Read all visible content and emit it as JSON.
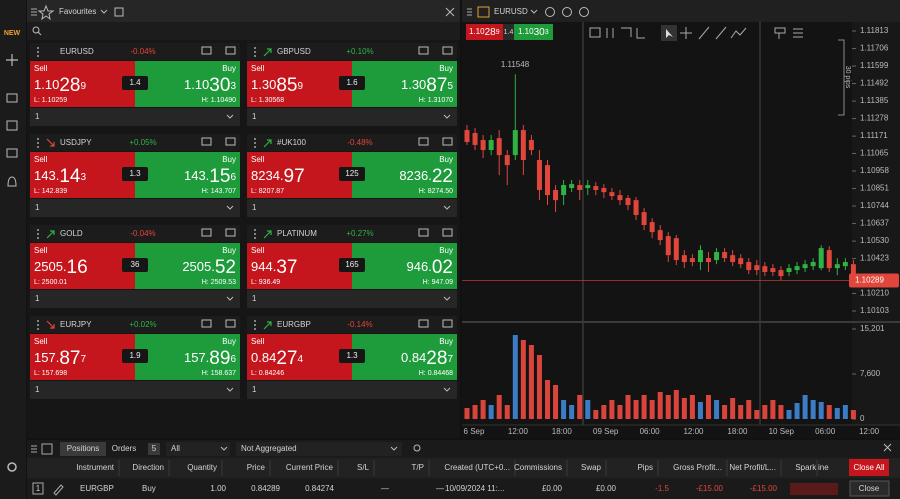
{
  "sidebar": {
    "badge": "NEW"
  },
  "favourites": {
    "title": "Favourites",
    "sell_label": "Sell",
    "buy_label": "Buy",
    "up_color": "#2fb344",
    "down_color": "#e0463c",
    "sell_color": "#c4161c",
    "buy_color": "#1e9b3a",
    "tiles": [
      {
        "symbol": "EURUSD",
        "change": "-0.04%",
        "change_color": "#e0463c",
        "sell": [
          "1.10",
          "28",
          "9"
        ],
        "spread": "1.4",
        "buy": [
          "1.10",
          "30",
          "3"
        ],
        "low": "L: 1.10259",
        "high": "H: 1.10490",
        "quantity": "1"
      },
      {
        "symbol": "GBPUSD",
        "arrow": "up",
        "change": "+0.10%",
        "change_color": "#2fb344",
        "sell": [
          "1.30",
          "85",
          "9"
        ],
        "spread": "1.6",
        "buy": [
          "1.30",
          "87",
          "5"
        ],
        "low": "L: 1.30568",
        "high": "H: 1.31070",
        "quantity": "1"
      },
      {
        "symbol": "USDJPY",
        "arrow": "down",
        "change": "+0.05%",
        "change_color": "#2fb344",
        "sell": [
          "143.",
          "14",
          "3"
        ],
        "spread": "1.3",
        "buy": [
          "143.",
          "15",
          "6"
        ],
        "low": "L: 142.839",
        "high": "H: 143.707",
        "quantity": "1"
      },
      {
        "symbol": "#UK100",
        "arrow": "up",
        "change": "-0.48%",
        "change_color": "#e0463c",
        "sell": [
          "8234.",
          "97"
        ],
        "spread": "125",
        "buy": [
          "8236.",
          "22"
        ],
        "low": "L: 8207.87",
        "high": "H: 8274.50",
        "quantity": "1"
      },
      {
        "symbol": "GOLD",
        "arrow": "up",
        "change": "-0.04%",
        "change_color": "#e0463c",
        "sell": [
          "2505.",
          "16"
        ],
        "spread": "36",
        "buy": [
          "2505.",
          "52"
        ],
        "low": "L: 2500.01",
        "high": "H: 2509.53",
        "quantity": "1"
      },
      {
        "symbol": "PLATINUM",
        "arrow": "up",
        "change": "+0.27%",
        "change_color": "#2fb344",
        "sell": [
          "944.",
          "37"
        ],
        "spread": "165",
        "buy": [
          "946.",
          "02"
        ],
        "low": "L: 936.49",
        "high": "H: 947.09",
        "quantity": "1"
      },
      {
        "symbol": "EURJPY",
        "arrow": "down",
        "change": "+0.02%",
        "change_color": "#2fb344",
        "sell": [
          "157.",
          "87",
          "7"
        ],
        "spread": "1.9",
        "buy": [
          "157.",
          "89",
          "6"
        ],
        "low": "L: 157.698",
        "high": "H: 158.637",
        "quantity": "1"
      },
      {
        "symbol": "EURGBP",
        "arrow": "up",
        "change": "-0.14%",
        "change_color": "#e0463c",
        "sell": [
          "0.84",
          "27",
          "4"
        ],
        "spread": "1.3",
        "buy": [
          "0.84",
          "28",
          "7"
        ],
        "low": "L: 0.84246",
        "high": "H: 0.84468",
        "quantity": "1"
      }
    ]
  },
  "chart_data": {
    "type": "candlestick",
    "symbol": "EURUSD",
    "bid": [
      "1.10",
      "28",
      "9"
    ],
    "spread": "1.4",
    "ask": [
      "1.10",
      "30",
      "3"
    ],
    "annotation": "1.11548",
    "measure_label": "30 pips",
    "up_color": "#2fb344",
    "down_color": "#e0463c",
    "volume_up_color": "#3b7cc4",
    "volume_down_color": "#d9453d",
    "open": [
      1.11208,
      1.1119,
      1.11147,
      1.11086,
      1.11159,
      1.11055,
      1.11055,
      1.11208,
      1.11147,
      1.11025,
      1.10994,
      1.10842,
      1.10811,
      1.10854,
      1.10872,
      1.10854,
      1.10866,
      1.10854,
      1.10829,
      1.10811,
      1.10793,
      1.1078,
      1.10707,
      1.10646,
      1.10597,
      1.1056,
      1.10548,
      1.10444,
      1.10426,
      1.10402,
      1.10426,
      1.10414,
      1.10463,
      1.10444,
      1.10426,
      1.10402,
      1.10383,
      1.10377,
      1.10365,
      1.10353,
      1.10341,
      1.10353,
      1.10365,
      1.10377,
      1.10365,
      1.10475,
      1.10365,
      1.10377,
      1.10389
    ],
    "high": [
      1.11239,
      1.1122,
      1.11178,
      1.11178,
      1.11208,
      1.11086,
      1.11548,
      1.11239,
      1.11178,
      1.11086,
      1.11025,
      1.10872,
      1.10903,
      1.10903,
      1.10903,
      1.10903,
      1.1089,
      1.10878,
      1.10854,
      1.10842,
      1.10811,
      1.10799,
      1.10732,
      1.1067,
      1.10628,
      1.10585,
      1.10567,
      1.10475,
      1.1045,
      1.10505,
      1.10463,
      1.10487,
      1.10487,
      1.10475,
      1.1045,
      1.10426,
      1.10414,
      1.10402,
      1.10389,
      1.10377,
      1.10389,
      1.10402,
      1.10414,
      1.10426,
      1.10505,
      1.10499,
      1.10426,
      1.10426,
      1.10414
    ],
    "low": [
      1.11117,
      1.11086,
      1.11037,
      1.11055,
      1.10933,
      1.10872,
      1.11025,
      1.10933,
      1.11055,
      1.1078,
      1.1075,
      1.10707,
      1.1075,
      1.10829,
      1.1078,
      1.10811,
      1.10811,
      1.10793,
      1.1078,
      1.1075,
      1.10719,
      1.10658,
      1.10597,
      1.10548,
      1.10505,
      1.10402,
      1.10383,
      1.10365,
      1.10377,
      1.10353,
      1.10341,
      1.10389,
      1.10402,
      1.10377,
      1.10365,
      1.10328,
      1.10322,
      1.10316,
      1.10316,
      1.10292,
      1.10316,
      1.10328,
      1.10341,
      1.10353,
      1.10353,
      1.10341,
      1.10322,
      1.10353,
      1.10279
    ],
    "close": [
      1.11135,
      1.11117,
      1.11086,
      1.11147,
      1.11055,
      1.10994,
      1.11208,
      1.11025,
      1.11086,
      1.10842,
      1.10811,
      1.1078,
      1.10872,
      1.10878,
      1.10842,
      1.10872,
      1.10842,
      1.10829,
      1.10805,
      1.1078,
      1.1075,
      1.10689,
      1.10628,
      1.10585,
      1.10536,
      1.10444,
      1.10414,
      1.10402,
      1.10402,
      1.10475,
      1.10402,
      1.10463,
      1.10426,
      1.10402,
      1.10389,
      1.10353,
      1.10353,
      1.10341,
      1.10341,
      1.10316,
      1.10365,
      1.10377,
      1.10389,
      1.10402,
      1.10487,
      1.10365,
      1.10389,
      1.10402,
      1.10289
    ],
    "volume": [
      1858,
      2365,
      3209,
      2365,
      4054,
      2365,
      14188,
      13343,
      12499,
      10810,
      6587,
      5743,
      3209,
      2365,
      4054,
      3209,
      1520,
      2365,
      3209,
      2365,
      4054,
      3209,
      4054,
      3209,
      4560,
      4054,
      4898,
      3547,
      4054,
      2871,
      4054,
      3209,
      2365,
      3547,
      2365,
      3209,
      1520,
      2365,
      3209,
      2365,
      1520,
      2702,
      4054,
      3209,
      2871,
      2365,
      1858,
      2365,
      1520
    ],
    "ylim": [
      1.10103,
      1.11813
    ],
    "yticks": [
      1.10103,
      {
        "value": 1.1021,
        "label": "1.10210"
      },
      1.10423,
      {
        "value": 1.1053,
        "label": "1.10530"
      },
      1.10637,
      1.10744,
      1.10851,
      1.10958,
      1.11065,
      1.11171,
      1.11278,
      1.11385,
      1.11492,
      1.11599,
      1.11706,
      1.11813
    ],
    "last_price": {
      "value": 1.10289,
      "label": "1.10289"
    },
    "volume_ylim": [
      0,
      15201
    ],
    "volume_yticks": [
      0,
      {
        "value": 7600,
        "label": "7,600"
      },
      {
        "value": 15201,
        "label": "15,201"
      }
    ],
    "time_labels": [
      "6 Sep",
      "12:00",
      "18:00",
      "09 Sep",
      "06:00",
      "12:00",
      "18:00",
      "10 Sep",
      "06:00",
      "12:00"
    ]
  },
  "positions": {
    "tabs": [
      "Positions",
      "Orders"
    ],
    "orders_count": "5",
    "filter": "All",
    "aggregation": "Not Aggregated",
    "columns": [
      "Instrument",
      "Direction",
      "Quantity",
      "Price",
      "Current Price",
      "S/L",
      "T/P",
      "Created (UTC+0...",
      "Commissions",
      "Swap",
      "Pips",
      "Gross Profit...",
      "Net Profit/L...",
      "Sparkline"
    ],
    "rows": [
      [
        "1",
        "EURGBP",
        "Buy",
        "1.00",
        "0.84289",
        "0.84274",
        "—",
        "—",
        "10/09/2024 11:...",
        "£0.00",
        "£0.00",
        "-1.5",
        "-£15.00",
        "-£15.00"
      ]
    ],
    "close_all": "Close All",
    "close": "Close",
    "negative_color": "#e0463c"
  }
}
